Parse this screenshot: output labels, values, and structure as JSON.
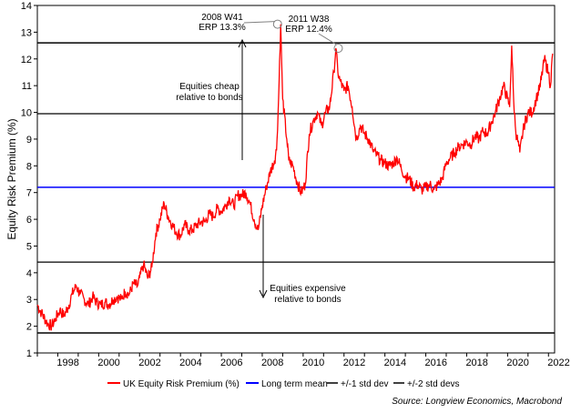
{
  "chart_data": {
    "type": "line",
    "title": "",
    "xlabel": "",
    "ylabel": "Equity Risk Premium (%)",
    "xlim": [
      1997.0,
      2022.3
    ],
    "ylim": [
      1,
      14
    ],
    "x_ticks": [
      "1998",
      "2000",
      "2002",
      "2004",
      "2006",
      "2008",
      "2010",
      "2012",
      "2014",
      "2016",
      "2018",
      "2020",
      "2022"
    ],
    "y_ticks": [
      "1",
      "2",
      "3",
      "4",
      "5",
      "6",
      "7",
      "8",
      "9",
      "10",
      "11",
      "12",
      "13",
      "14"
    ],
    "series": [
      {
        "name": "UK Equity Risk Premium (%)",
        "color": "#ff0000",
        "x": [
          1997.0,
          1997.2,
          1997.5,
          1997.7,
          1997.9,
          1998.1,
          1998.3,
          1998.5,
          1998.7,
          1998.9,
          1999.1,
          1999.3,
          1999.5,
          1999.7,
          1999.9,
          2000.1,
          2000.3,
          2000.5,
          2000.7,
          2000.9,
          2001.1,
          2001.3,
          2001.5,
          2001.7,
          2001.9,
          2002.0,
          2002.2,
          2002.4,
          2002.6,
          2002.8,
          2003.0,
          2003.2,
          2003.4,
          2003.6,
          2003.8,
          2004.0,
          2004.2,
          2004.4,
          2004.6,
          2004.8,
          2005.0,
          2005.2,
          2005.4,
          2005.6,
          2005.8,
          2006.0,
          2006.2,
          2006.4,
          2006.6,
          2006.8,
          2007.0,
          2007.2,
          2007.4,
          2007.6,
          2007.8,
          2008.0,
          2008.2,
          2008.4,
          2008.6,
          2008.7,
          2008.8,
          2008.9,
          2009.0,
          2009.2,
          2009.3,
          2009.5,
          2009.7,
          2009.9,
          2010.1,
          2010.3,
          2010.5,
          2010.7,
          2010.9,
          2011.1,
          2011.3,
          2011.5,
          2011.6,
          2011.7,
          2011.8,
          2012.0,
          2012.2,
          2012.4,
          2012.6,
          2012.8,
          2013.0,
          2013.2,
          2013.4,
          2013.6,
          2013.8,
          2014.0,
          2014.2,
          2014.4,
          2014.6,
          2014.8,
          2015.0,
          2015.2,
          2015.4,
          2015.6,
          2015.8,
          2016.0,
          2016.2,
          2016.4,
          2016.6,
          2016.8,
          2017.0,
          2017.2,
          2017.4,
          2017.6,
          2017.8,
          2018.0,
          2018.2,
          2018.4,
          2018.6,
          2018.8,
          2019.0,
          2019.2,
          2019.4,
          2019.6,
          2019.8,
          2020.0,
          2020.1,
          2020.2,
          2020.3,
          2020.4,
          2020.6,
          2020.8,
          2021.0,
          2021.2,
          2021.4,
          2021.6,
          2021.8,
          2022.0,
          2022.1,
          2022.2
        ],
        "y": [
          2.8,
          2.5,
          2.1,
          2.0,
          2.3,
          2.6,
          2.4,
          2.7,
          3.2,
          3.5,
          3.2,
          3.0,
          2.8,
          3.1,
          2.9,
          2.8,
          2.9,
          2.8,
          3.0,
          3.1,
          3.0,
          3.3,
          3.2,
          3.6,
          3.5,
          3.8,
          4.3,
          3.8,
          4.2,
          5.5,
          6.0,
          6.6,
          6.1,
          5.8,
          5.5,
          5.4,
          5.8,
          5.6,
          5.6,
          5.8,
          5.9,
          5.9,
          6.2,
          6.1,
          6.4,
          6.3,
          6.5,
          6.8,
          6.5,
          6.9,
          6.9,
          7.0,
          6.6,
          6.0,
          5.6,
          6.5,
          7.2,
          7.8,
          8.2,
          8.6,
          10.5,
          13.3,
          10.5,
          9.0,
          8.2,
          8.0,
          7.4,
          7.0,
          7.3,
          9.2,
          9.7,
          10.0,
          9.5,
          10.0,
          10.2,
          11.5,
          12.4,
          11.5,
          11.2,
          10.8,
          11.0,
          10.2,
          9.0,
          9.5,
          9.2,
          9.0,
          8.6,
          8.4,
          8.2,
          8.1,
          8.0,
          8.1,
          8.3,
          7.9,
          7.6,
          7.5,
          7.2,
          7.3,
          7.1,
          7.2,
          7.3,
          7.1,
          7.3,
          7.5,
          8.1,
          8.3,
          8.5,
          8.7,
          8.8,
          8.9,
          8.8,
          9.1,
          9.0,
          9.3,
          9.2,
          9.6,
          10.0,
          10.5,
          11.0,
          10.5,
          10.2,
          12.5,
          10.4,
          9.3,
          8.5,
          9.5,
          10.0,
          10.0,
          10.5,
          11.0,
          12.0,
          11.5,
          11.0,
          12.2
        ]
      },
      {
        "name": "Long term mean",
        "color": "#0000ff",
        "value": 7.2
      },
      {
        "name": "+/-1 std dev",
        "color": "#000000",
        "values": [
          9.95,
          4.4
        ]
      },
      {
        "name": "+/-2 std devs",
        "color": "#000000",
        "values": [
          12.6,
          1.75
        ]
      }
    ],
    "annotations": [
      {
        "text": [
          "2008 W41",
          "ERP 13.3%"
        ],
        "x": 2008.75,
        "y": 13.3
      },
      {
        "text": [
          "2011 W38",
          "ERP 12.4%"
        ],
        "x": 2011.72,
        "y": 12.4
      },
      {
        "text": [
          "Equities cheap",
          "relative to bonds"
        ],
        "arrow": "up"
      },
      {
        "text": [
          "Equities expensive",
          "relative to bonds"
        ],
        "arrow": "down"
      }
    ],
    "legend": {
      "items": [
        "UK Equity Risk Premium (%)",
        "Long term mean",
        "+/-1 std dev",
        "+/-2 std devs"
      ],
      "placement": "bottom"
    },
    "source": "Source: Longview Economics, Macrobond"
  }
}
